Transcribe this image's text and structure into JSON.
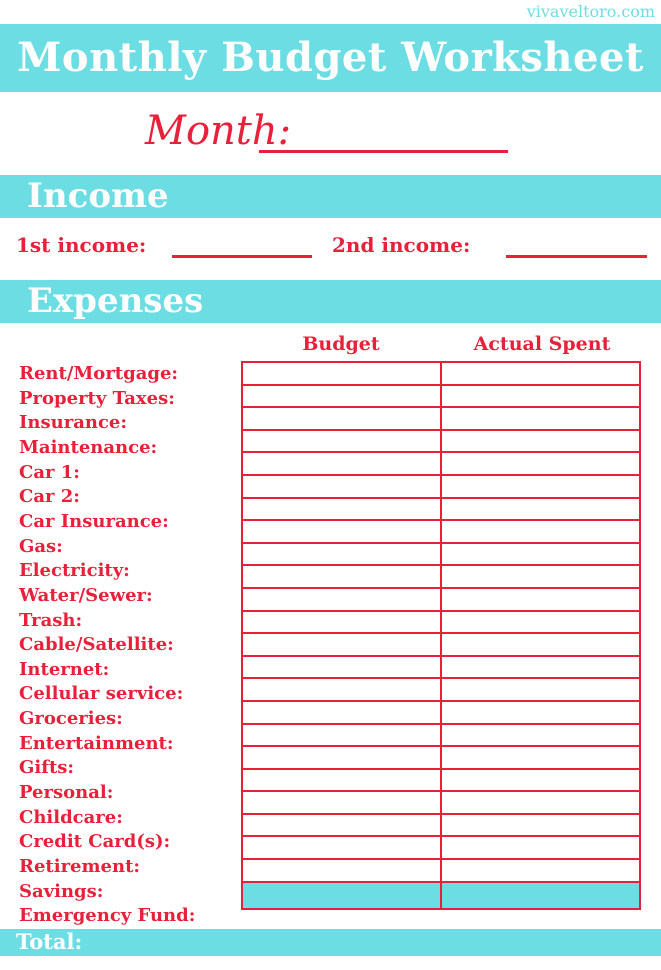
{
  "site": "vivaveltoro.com",
  "title": "Monthly Budget Worksheet",
  "month_label": "Month:",
  "income": {
    "heading": "Income",
    "first_label": "1st income:",
    "second_label": "2nd income:"
  },
  "expenses": {
    "heading": "Expenses",
    "columns": [
      "Budget",
      "Actual Spent"
    ],
    "items": [
      "Rent/Mortgage:",
      "Property Taxes:",
      "Insurance:",
      "Maintenance:",
      "Car 1:",
      "Car 2:",
      "Car Insurance:",
      "Gas:",
      "Electricity:",
      "Water/Sewer:",
      "Trash:",
      "Cable/Satellite:",
      "Internet:",
      "Cellular service:",
      "Groceries:",
      "Entertainment:",
      "Gifts:",
      "Personal:",
      "Childcare:",
      "Credit Card(s):",
      "Retirement:",
      "Savings:",
      "Emergency Fund:"
    ],
    "total_label": "Total:"
  },
  "colors": {
    "accent": "#6ddde4",
    "text": "#e8203a"
  }
}
